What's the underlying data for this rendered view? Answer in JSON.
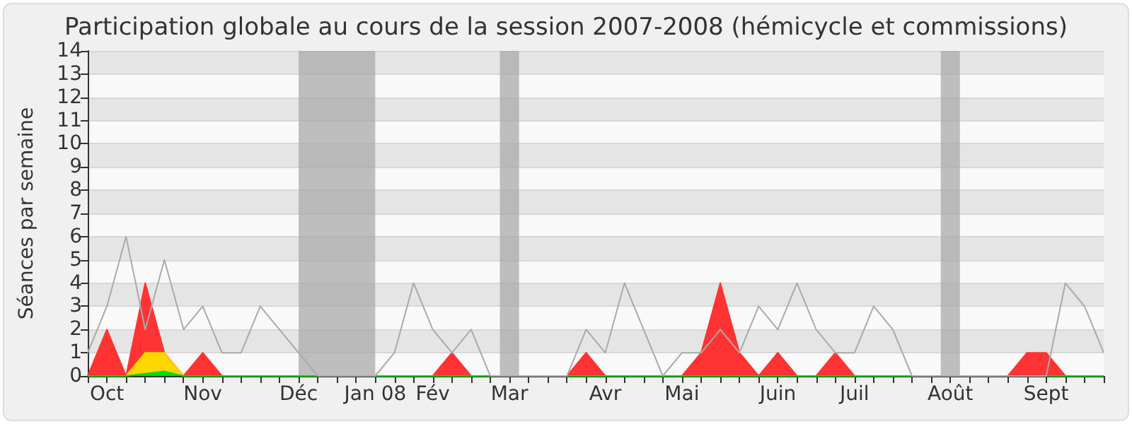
{
  "chart_data": {
    "type": "area",
    "title": "Participation globale au cours de la session 2007-2008 (hémicycle et commissions)",
    "ylabel": "Séances par semaine",
    "categories": [
      null,
      "Oct",
      null,
      null,
      null,
      null,
      "Nov",
      null,
      null,
      null,
      null,
      "Déc",
      null,
      null,
      null,
      "Jan 08",
      null,
      null,
      "Fév",
      null,
      null,
      null,
      "Mar",
      null,
      null,
      null,
      null,
      "Avr",
      null,
      null,
      null,
      "Mai",
      null,
      null,
      null,
      null,
      "Juin",
      null,
      null,
      null,
      "Juil",
      null,
      null,
      null,
      null,
      "Août",
      null,
      null,
      null,
      null,
      "Sept",
      null,
      null,
      null
    ],
    "series": [
      {
        "color": "#ff3333",
        "values": [
          0,
          2,
          0,
          4,
          1,
          0,
          1,
          0,
          0,
          0,
          0,
          0,
          0,
          0,
          0,
          0,
          0,
          0,
          0,
          1,
          0,
          0,
          0,
          0,
          0,
          0,
          1,
          0,
          0,
          0,
          0,
          0,
          1,
          4,
          1,
          0,
          1,
          0,
          0,
          1,
          0,
          0,
          0,
          0,
          0,
          0,
          0,
          0,
          0,
          1,
          1,
          0,
          0,
          0
        ]
      },
      {
        "color": "#ffd700",
        "values": [
          0,
          0,
          0,
          1,
          1,
          0,
          0,
          0,
          0,
          0,
          0,
          0,
          0,
          0,
          0,
          0,
          0,
          0,
          0,
          0,
          0,
          0,
          0,
          0,
          0,
          0,
          0,
          0,
          0,
          0,
          0,
          0,
          0,
          0,
          0,
          0,
          0,
          0,
          0,
          0,
          0,
          0,
          0,
          0,
          0,
          0,
          0,
          0,
          0,
          0,
          0,
          0,
          0,
          0
        ]
      },
      {
        "color": "#00dd00",
        "values": [
          0,
          0,
          0,
          0.1,
          0.2,
          0,
          0,
          0,
          0,
          0,
          0,
          0,
          0,
          0,
          0,
          0,
          0,
          0,
          0,
          0,
          0,
          0,
          0,
          0,
          0,
          0,
          0,
          0,
          0,
          0,
          0,
          0,
          0,
          0,
          0,
          0,
          0,
          0,
          0,
          0,
          0,
          0,
          0,
          0,
          0,
          0,
          0,
          0,
          0,
          0,
          0,
          0,
          0,
          0
        ]
      },
      {
        "type": "line",
        "color": "#aaaaaa",
        "values": [
          1,
          3,
          6,
          2,
          5,
          2,
          3,
          1,
          1,
          3,
          2,
          1,
          0,
          0,
          0,
          0,
          1,
          4,
          2,
          1,
          2,
          0,
          0,
          0,
          0,
          0,
          2,
          1,
          4,
          2,
          0,
          1,
          1,
          2,
          1,
          3,
          2,
          4,
          2,
          1,
          1,
          3,
          2,
          0,
          0,
          0,
          0,
          0,
          0,
          0,
          0,
          4,
          3,
          1
        ]
      }
    ],
    "ylim": [
      0,
      14
    ],
    "yticks": [
      0,
      1,
      2,
      3,
      4,
      5,
      6,
      7,
      8,
      9,
      10,
      11,
      12,
      13,
      14
    ],
    "bands": [
      {
        "axis": "x",
        "from": "Déc",
        "to": "Jan 08",
        "color": "#aaaaaa"
      },
      {
        "axis": "x",
        "from": "Mar",
        "to": "Mar",
        "color": "#aaaaaa"
      },
      {
        "axis": "x",
        "from": "Août",
        "to": "Août",
        "color": "#aaaaaa"
      }
    ],
    "grid": "y",
    "marker": "none"
  }
}
